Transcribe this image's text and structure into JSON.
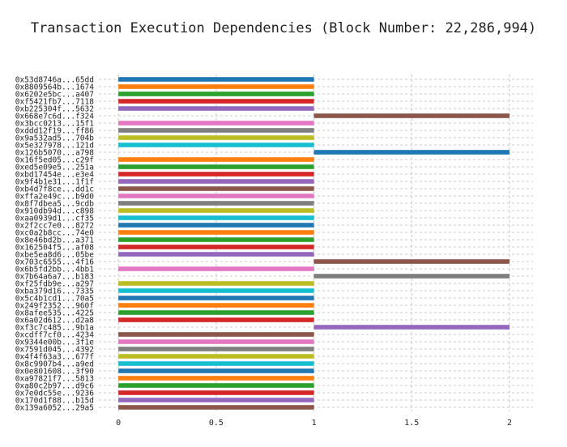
{
  "chart_data": {
    "type": "bar",
    "orientation": "horizontal",
    "title": "Transaction Execution Dependencies (Block Number: 22,286,994)",
    "xlabel": "",
    "ylabel": "",
    "xlim": [
      -0.1,
      2.12
    ],
    "xticks": [
      "0",
      "0.5",
      "1",
      "1.5",
      "2"
    ],
    "xtick_values": [
      0,
      0.5,
      1,
      1.5,
      2
    ],
    "grid": true,
    "bars": [
      {
        "label": "0x53d8746a...65dd",
        "start": 0,
        "end": 1,
        "color": "#1f77b4"
      },
      {
        "label": "0x8809564b...1674",
        "start": 0,
        "end": 1,
        "color": "#ff7f0e"
      },
      {
        "label": "0x6202e5bc...a407",
        "start": 0,
        "end": 1,
        "color": "#2ca02c"
      },
      {
        "label": "0xf5421fb7...7118",
        "start": 0,
        "end": 1,
        "color": "#d62728"
      },
      {
        "label": "0xb225304f...5632",
        "start": 0,
        "end": 1,
        "color": "#9467bd"
      },
      {
        "label": "0x668e7c6d...f324",
        "start": 1,
        "end": 2,
        "color": "#8c564b"
      },
      {
        "label": "0x3bcc0213...15f1",
        "start": 0,
        "end": 1,
        "color": "#e377c2"
      },
      {
        "label": "0xddd12f19...ff86",
        "start": 0,
        "end": 1,
        "color": "#7f7f7f"
      },
      {
        "label": "0x9a532ad5...704b",
        "start": 0,
        "end": 1,
        "color": "#bcbd22"
      },
      {
        "label": "0x5e327978...121d",
        "start": 0,
        "end": 1,
        "color": "#17becf"
      },
      {
        "label": "0x126b5070...a798",
        "start": 1,
        "end": 2,
        "color": "#1f77b4"
      },
      {
        "label": "0x16f5ed05...c29f",
        "start": 0,
        "end": 1,
        "color": "#ff7f0e"
      },
      {
        "label": "0xed5e09e5...251a",
        "start": 0,
        "end": 1,
        "color": "#2ca02c"
      },
      {
        "label": "0xbd17454e...e3e4",
        "start": 0,
        "end": 1,
        "color": "#d62728"
      },
      {
        "label": "0x9f4b1e31...1f1f",
        "start": 0,
        "end": 1,
        "color": "#9467bd"
      },
      {
        "label": "0xb4d7f8ce...dd1c",
        "start": 0,
        "end": 1,
        "color": "#8c564b"
      },
      {
        "label": "0xffa2e49c...b9d0",
        "start": 0,
        "end": 1,
        "color": "#e377c2"
      },
      {
        "label": "0x8f7dbea5...9cdb",
        "start": 0,
        "end": 1,
        "color": "#7f7f7f"
      },
      {
        "label": "0x910db94d...c898",
        "start": 0,
        "end": 1,
        "color": "#bcbd22"
      },
      {
        "label": "0xaa0939d1...cf35",
        "start": 0,
        "end": 1,
        "color": "#17becf"
      },
      {
        "label": "0x2f2cc7e0...8272",
        "start": 0,
        "end": 1,
        "color": "#1f77b4"
      },
      {
        "label": "0xc0a2b8cc...74e0",
        "start": 0,
        "end": 1,
        "color": "#ff7f0e"
      },
      {
        "label": "0x8e46bd2b...a371",
        "start": 0,
        "end": 1,
        "color": "#2ca02c"
      },
      {
        "label": "0x162504f5...af08",
        "start": 0,
        "end": 1,
        "color": "#d62728"
      },
      {
        "label": "0xbe5ea8d6...05be",
        "start": 0,
        "end": 1,
        "color": "#9467bd"
      },
      {
        "label": "0x703c6555...4f16",
        "start": 1,
        "end": 2,
        "color": "#8c564b"
      },
      {
        "label": "0x6b5fd2bb...4bb1",
        "start": 0,
        "end": 1,
        "color": "#e377c2"
      },
      {
        "label": "0x7b64a6a7...b183",
        "start": 1,
        "end": 2,
        "color": "#7f7f7f"
      },
      {
        "label": "0xf25fdb9e...a297",
        "start": 0,
        "end": 1,
        "color": "#bcbd22"
      },
      {
        "label": "0xba379d16...7335",
        "start": 0,
        "end": 1,
        "color": "#17becf"
      },
      {
        "label": "0x5c4b1cd1...70a5",
        "start": 0,
        "end": 1,
        "color": "#1f77b4"
      },
      {
        "label": "0x249f2352...960f",
        "start": 0,
        "end": 1,
        "color": "#ff7f0e"
      },
      {
        "label": "0x8afee535...4225",
        "start": 0,
        "end": 1,
        "color": "#2ca02c"
      },
      {
        "label": "0x6a02d612...d2a8",
        "start": 0,
        "end": 1,
        "color": "#d62728"
      },
      {
        "label": "0xf3c7c485...9b1a",
        "start": 1,
        "end": 2,
        "color": "#9467bd"
      },
      {
        "label": "0xcdff7cf0...4234",
        "start": 0,
        "end": 1,
        "color": "#8c564b"
      },
      {
        "label": "0x9344e00b...3f1e",
        "start": 0,
        "end": 1,
        "color": "#e377c2"
      },
      {
        "label": "0x7591d045...4392",
        "start": 0,
        "end": 1,
        "color": "#7f7f7f"
      },
      {
        "label": "0x4f4f63a3...677f",
        "start": 0,
        "end": 1,
        "color": "#bcbd22"
      },
      {
        "label": "0x8c9907b4...a9ed",
        "start": 0,
        "end": 1,
        "color": "#17becf"
      },
      {
        "label": "0x0e801608...3f90",
        "start": 0,
        "end": 1,
        "color": "#1f77b4"
      },
      {
        "label": "0xa97821f7...5813",
        "start": 0,
        "end": 1,
        "color": "#ff7f0e"
      },
      {
        "label": "0xa80c2b97...d9c6",
        "start": 0,
        "end": 1,
        "color": "#2ca02c"
      },
      {
        "label": "0x7e0dc55e...9236",
        "start": 0,
        "end": 1,
        "color": "#d62728"
      },
      {
        "label": "0x170d1f88...b15d",
        "start": 0,
        "end": 1,
        "color": "#9467bd"
      },
      {
        "label": "0x139a6052...29a5",
        "start": 0,
        "end": 1,
        "color": "#8c564b"
      }
    ]
  }
}
